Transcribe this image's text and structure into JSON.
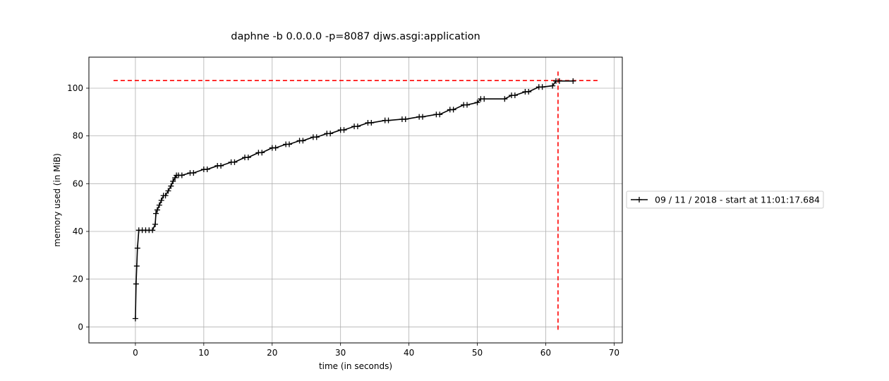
{
  "chart_data": {
    "type": "line",
    "title": "daphne -b 0.0.0.0 -p=8087 djws.asgi:application",
    "xlabel": "time (in seconds)",
    "ylabel": "memory used (in MiB)",
    "xlim": [
      -6.8,
      71.2
    ],
    "ylim": [
      -6.7,
      113.0
    ],
    "xticks": [
      0,
      10,
      20,
      30,
      40,
      50,
      60,
      70
    ],
    "yticks": [
      0,
      20,
      40,
      60,
      80,
      100
    ],
    "grid": true,
    "legend_position": "outside-right",
    "series": [
      {
        "name": "09 / 11 / 2018 - start at 11:01:17.684",
        "color": "#000000",
        "marker": "plus",
        "x": [
          0.0,
          0.1,
          0.2,
          0.3,
          0.5,
          1.0,
          1.5,
          2.0,
          2.5,
          2.9,
          3.0,
          3.2,
          3.5,
          3.8,
          4.1,
          4.4,
          4.8,
          5.2,
          5.5,
          5.8,
          6.0,
          6.3,
          6.8,
          8.0,
          8.5,
          10.0,
          10.5,
          12.0,
          12.5,
          14.0,
          14.5,
          16.0,
          16.5,
          18.0,
          18.5,
          20.0,
          20.5,
          22.0,
          22.5,
          24.0,
          24.5,
          26.0,
          26.5,
          28.0,
          28.5,
          30.0,
          30.5,
          32.0,
          32.5,
          34.0,
          34.5,
          36.5,
          37.0,
          39.0,
          39.5,
          41.5,
          42.0,
          44.0,
          44.5,
          46.0,
          46.5,
          48.0,
          48.5,
          50.0,
          50.5,
          51.0,
          54.0,
          55.0,
          55.5,
          57.0,
          57.5,
          59.0,
          59.5,
          61.0,
          61.5,
          62.0,
          64.0
        ],
        "values": [
          3.5,
          18.0,
          25.5,
          33.0,
          40.5,
          40.5,
          40.5,
          40.5,
          40.5,
          43.0,
          47.5,
          49.0,
          51.0,
          53.0,
          55.0,
          55.0,
          57.0,
          59.0,
          61.0,
          62.5,
          63.5,
          63.5,
          63.5,
          64.5,
          64.5,
          66.0,
          66.0,
          67.5,
          67.5,
          69.0,
          69.0,
          71.0,
          71.0,
          73.0,
          73.0,
          75.0,
          75.0,
          76.5,
          76.5,
          78.0,
          78.0,
          79.5,
          79.5,
          81.0,
          81.0,
          82.5,
          82.5,
          84.0,
          84.0,
          85.5,
          85.5,
          86.5,
          86.5,
          87.0,
          87.0,
          88.0,
          88.0,
          89.0,
          89.0,
          91.0,
          91.0,
          93.0,
          93.0,
          94.0,
          95.5,
          95.5,
          95.5,
          97.0,
          97.0,
          98.5,
          98.5,
          100.5,
          100.5,
          101.0,
          103.0,
          103.0,
          103.0
        ]
      }
    ],
    "reference_lines": [
      {
        "orientation": "horizontal",
        "value": 103.2,
        "from": -3.2,
        "to": 67.8,
        "color": "#ff0000",
        "style": "dashed"
      },
      {
        "orientation": "vertical",
        "value": 61.8,
        "from": -1.2,
        "to": 108.0,
        "color": "#ff0000",
        "style": "dashed"
      }
    ]
  }
}
